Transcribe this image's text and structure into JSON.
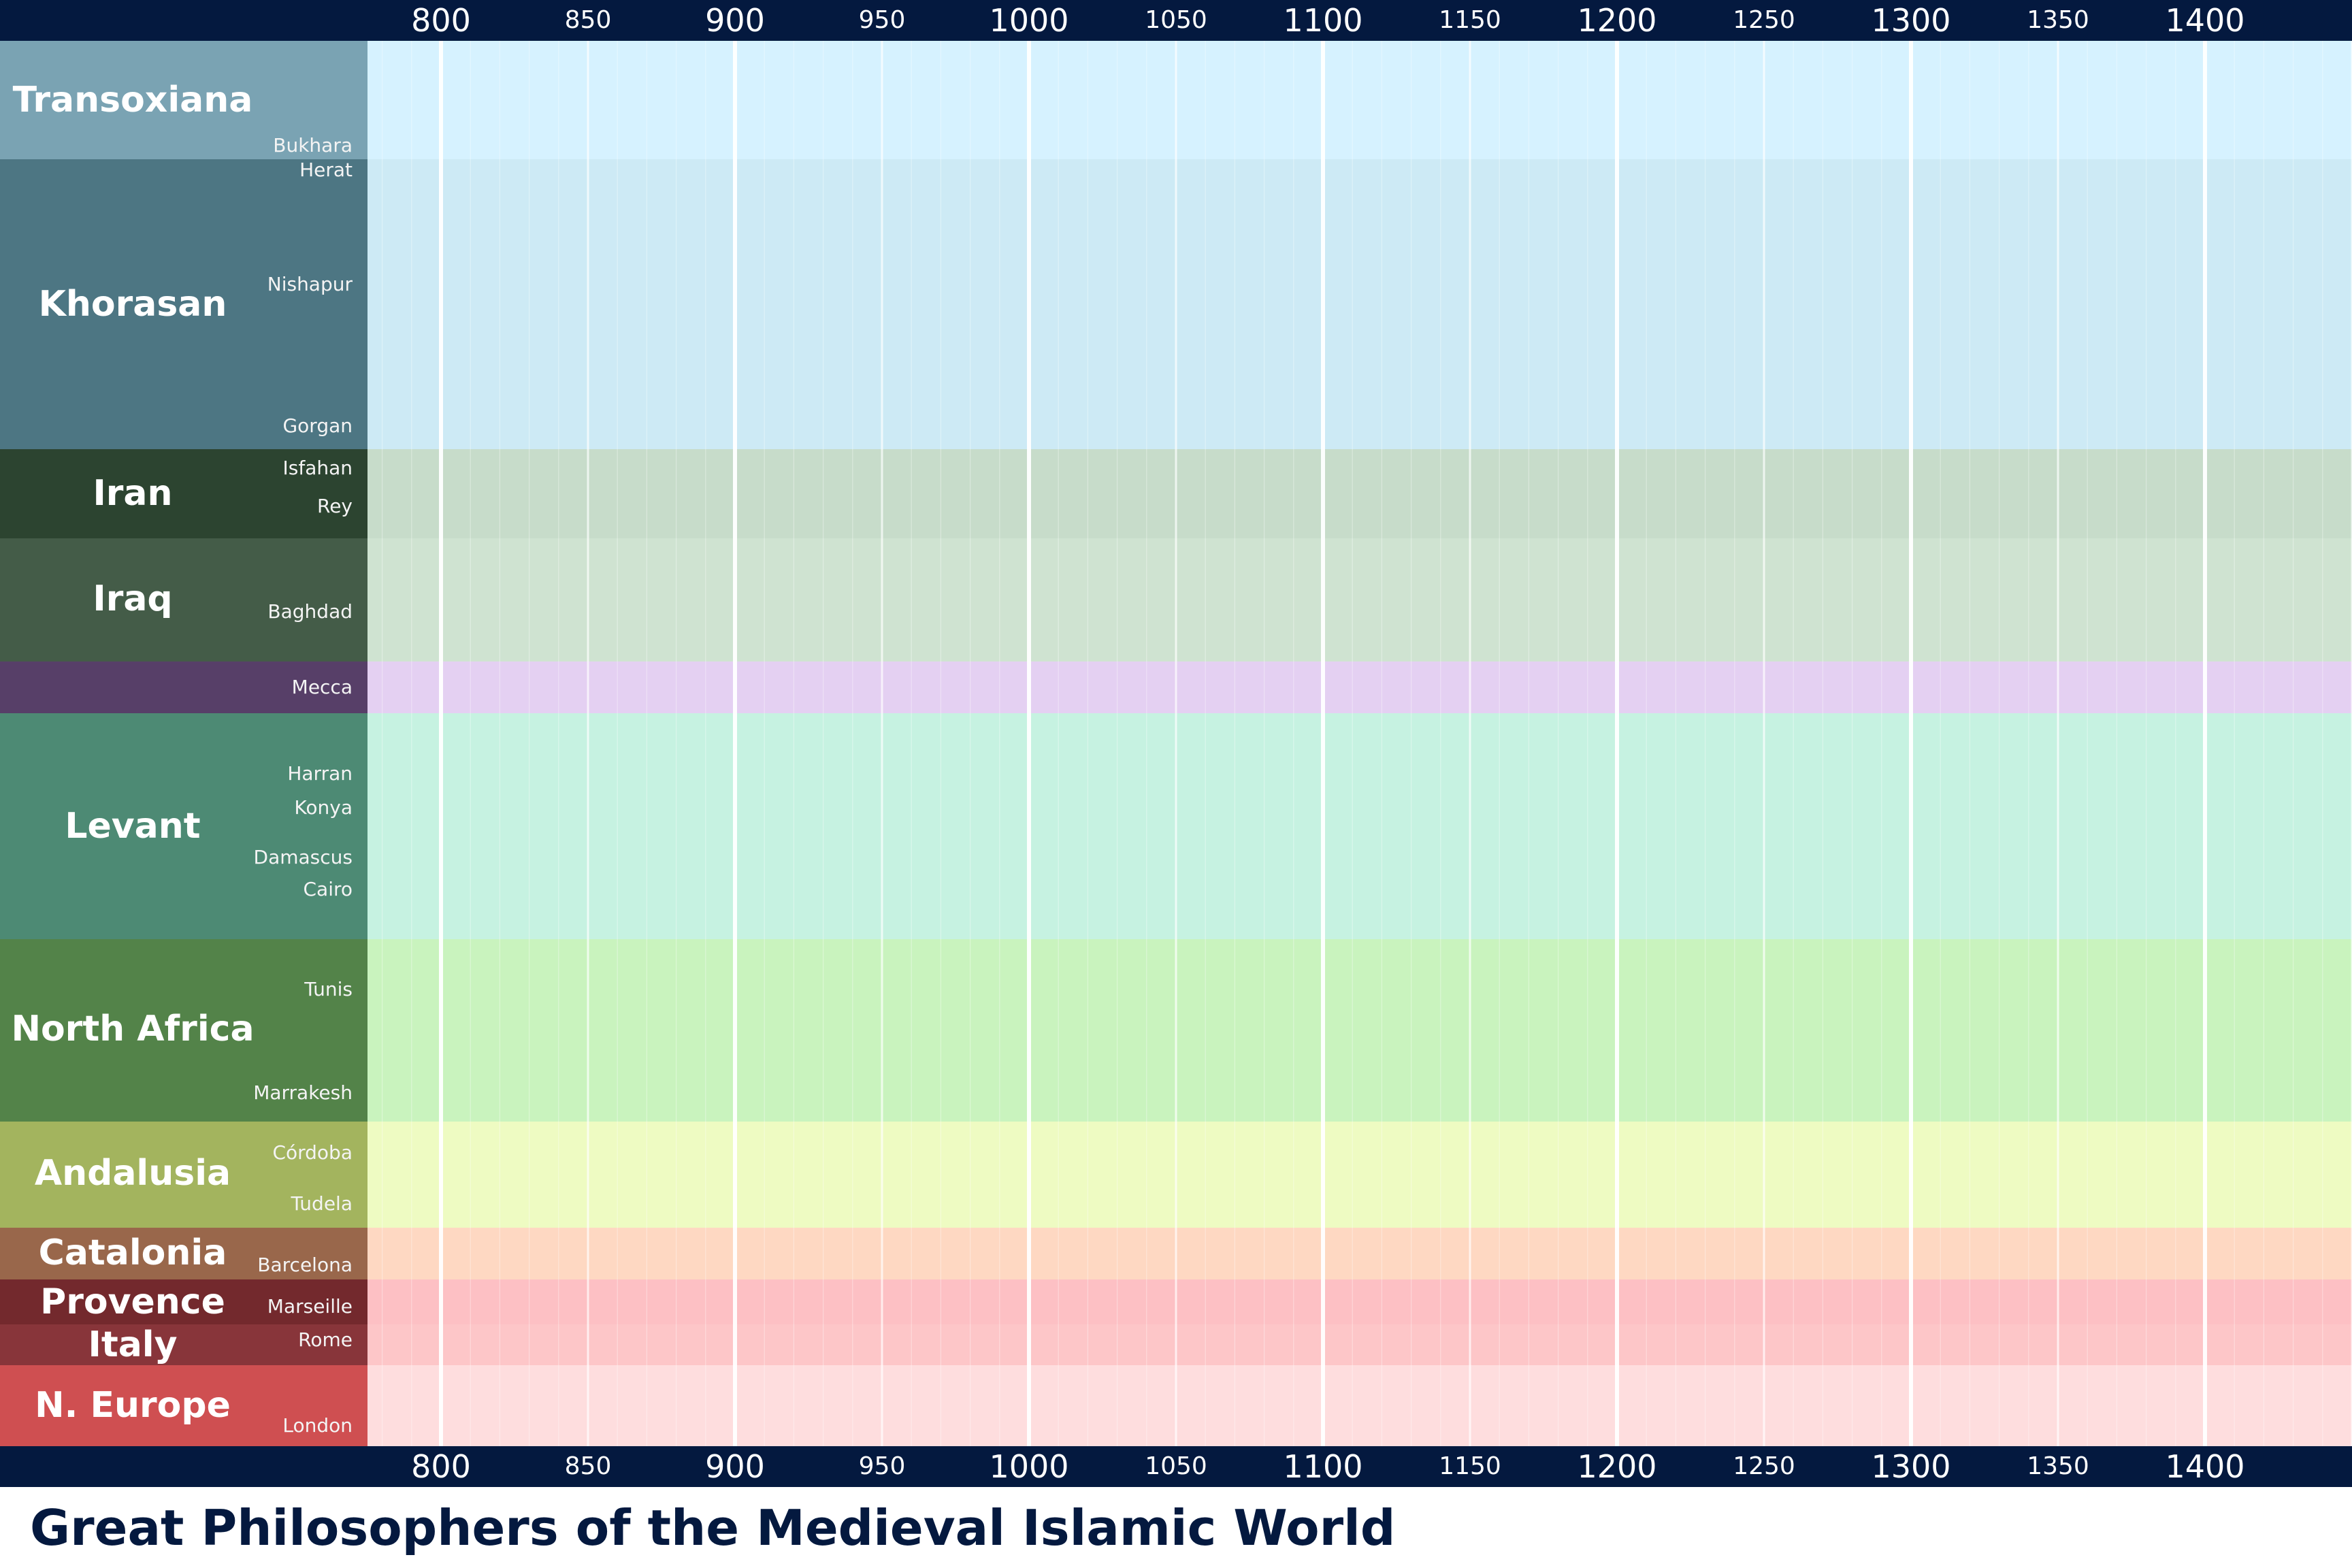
{
  "title": "Great Philosophers of the Medieval Islamic World",
  "timeline": {
    "start_year": 775,
    "end_year": 1450,
    "tick_labels": [
      {
        "year": 800,
        "label": "800",
        "major": true
      },
      {
        "year": 850,
        "label": "850",
        "major": false
      },
      {
        "year": 900,
        "label": "900",
        "major": true
      },
      {
        "year": 950,
        "label": "950",
        "major": false
      },
      {
        "year": 1000,
        "label": "1000",
        "major": true
      },
      {
        "year": 1050,
        "label": "1050",
        "major": false
      },
      {
        "year": 1100,
        "label": "1100",
        "major": true
      },
      {
        "year": 1150,
        "label": "1150",
        "major": false
      },
      {
        "year": 1200,
        "label": "1200",
        "major": true
      },
      {
        "year": 1250,
        "label": "1250",
        "major": false
      },
      {
        "year": 1300,
        "label": "1300",
        "major": true
      },
      {
        "year": 1350,
        "label": "1350",
        "major": false
      },
      {
        "year": 1400,
        "label": "1400",
        "major": true
      }
    ]
  },
  "regions": [
    {
      "name": "Transoxiana",
      "color": "#7aa3b3",
      "band_color": "#d6f2ff",
      "cities": [
        "Bukhara"
      ]
    },
    {
      "name": "Khorasan",
      "color": "#4d7683",
      "band_color": "#cdeaf5",
      "cities": [
        "Herat",
        "Nishapur",
        "Gorgan"
      ]
    },
    {
      "name": "Iran",
      "color": "#2c4430",
      "band_color": "#c7dcca",
      "cities": [
        "Isfahan",
        "Rey"
      ]
    },
    {
      "name": "Iraq",
      "color": "#445c48",
      "band_color": "#cfe3d1",
      "cities": [
        "Baghdad"
      ]
    },
    {
      "name": "",
      "color": "#573f68",
      "band_color": "#e4d0f2",
      "cities": [
        "Mecca"
      ]
    },
    {
      "name": "Levant",
      "color": "#4d8a74",
      "band_color": "#c6f2e1",
      "cities": [
        "Harran",
        "Konya",
        "Damascus",
        "Cairo"
      ]
    },
    {
      "name": "North Africa",
      "color": "#538349",
      "band_color": "#c9f3be",
      "cities": [
        "Tunis",
        "Marrakesh"
      ]
    },
    {
      "name": "Andalusia",
      "color": "#a3b45e",
      "band_color": "#eefbc2",
      "cities": [
        "Córdoba",
        "Tudela"
      ]
    },
    {
      "name": "Catalonia",
      "color": "#99674b",
      "band_color": "#fed8c2",
      "cities": [
        "Barcelona"
      ]
    },
    {
      "name": "Provence",
      "color": "#73292d",
      "band_color": "#fdc0c4",
      "cities": [
        "Marseille"
      ]
    },
    {
      "name": "Italy",
      "color": "#88353a",
      "band_color": "#fdc6c8",
      "cities": [
        "Rome"
      ]
    },
    {
      "name": "N. Europe",
      "color": "#cf4f51",
      "band_color": "#feddde",
      "cities": [
        "London"
      ]
    }
  ]
}
